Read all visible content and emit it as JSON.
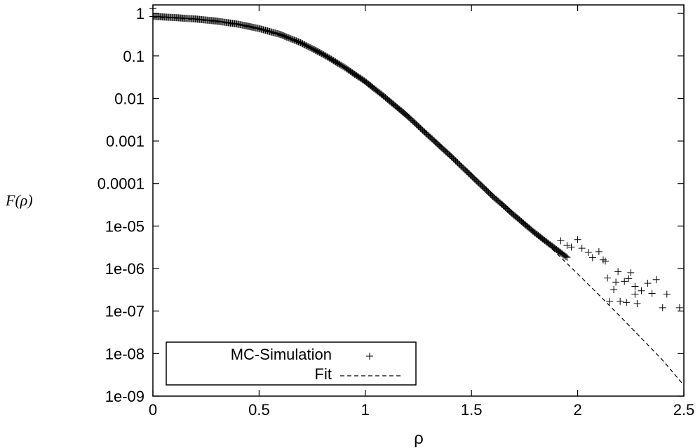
{
  "chart_data": {
    "type": "scatter",
    "title": "",
    "xlabel": "ρ",
    "ylabel": "F(ρ)",
    "xlim": [
      0,
      2.5
    ],
    "ylim": [
      1e-09,
      2
    ],
    "yscale": "log",
    "grid": false,
    "legend_position": "bottom-left",
    "x_ticks": [
      "0",
      "0.5",
      "1",
      "1.5",
      "2",
      "2.5"
    ],
    "y_ticks": [
      "1",
      "0.1",
      "0.01",
      "0.001",
      "0.0001",
      "1e-05",
      "1e-06",
      "1e-07",
      "1e-08",
      "1e-09"
    ],
    "series": [
      {
        "name": "MC-Simulation",
        "style": "points-plus",
        "curve": {
          "rho": [
            0,
            0.1,
            0.2,
            0.3,
            0.4,
            0.5,
            0.6,
            0.7,
            0.8,
            0.9,
            1.0,
            1.1,
            1.2,
            1.3,
            1.4,
            1.5,
            1.6,
            1.7,
            1.8,
            1.9,
            2.0
          ],
          "F": [
            0.85,
            0.8,
            0.74,
            0.66,
            0.56,
            0.44,
            0.32,
            0.2,
            0.11,
            0.055,
            0.025,
            0.01,
            0.0038,
            0.0013,
            0.00045,
            0.00015,
            5e-05,
            1.8e-05,
            6.8e-06,
            2.8e-06,
            1.2e-06
          ]
        },
        "tail_points": [
          [
            1.92,
            4.5e-06
          ],
          [
            1.95,
            3.5e-06
          ],
          [
            1.97,
            3.2e-06
          ],
          [
            2.0,
            4.8e-06
          ],
          [
            2.02,
            3e-06
          ],
          [
            2.05,
            2.4e-06
          ],
          [
            2.07,
            1.8e-06
          ],
          [
            2.1,
            2.5e-06
          ],
          [
            2.12,
            1.6e-06
          ],
          [
            2.13,
            1.5e-06
          ],
          [
            2.17,
            3.2e-07
          ],
          [
            2.18,
            4.8e-07
          ],
          [
            2.2,
            1.7e-07
          ],
          [
            2.22,
            5e-07
          ],
          [
            2.25,
            8e-07
          ],
          [
            2.27,
            2.5e-07
          ],
          [
            2.28,
            1.5e-07
          ],
          [
            2.3,
            3e-07
          ],
          [
            2.33,
            4.5e-07
          ],
          [
            2.35,
            2.6e-07
          ],
          [
            2.37,
            5.5e-07
          ],
          [
            2.4,
            1.2e-07
          ],
          [
            2.42,
            2.5e-07
          ],
          [
            2.48,
            1.2e-07
          ],
          [
            2.15,
            1.7e-07
          ],
          [
            2.23,
            1.6e-07
          ],
          [
            2.27,
            3.8e-07
          ],
          [
            2.14,
            6e-07
          ],
          [
            2.19,
            8.5e-07
          ],
          [
            2.24,
            5.8e-07
          ]
        ]
      },
      {
        "name": "Fit",
        "style": "dashed-line",
        "points": {
          "rho": [
            0,
            0.1,
            0.2,
            0.3,
            0.4,
            0.5,
            0.6,
            0.7,
            0.8,
            0.9,
            1.0,
            1.1,
            1.2,
            1.3,
            1.4,
            1.5,
            1.6,
            1.7,
            1.8,
            1.9,
            2.0,
            2.1,
            2.2,
            2.3,
            2.4,
            2.5
          ],
          "F": [
            0.82,
            0.78,
            0.72,
            0.64,
            0.54,
            0.42,
            0.3,
            0.19,
            0.105,
            0.052,
            0.024,
            0.0098,
            0.0038,
            0.0014,
            0.0005,
            0.00017,
            5.7e-05,
            2e-05,
            6.8e-06,
            2.3e-06,
            7.5e-07,
            2.4e-07,
            7.5e-08,
            2.3e-08,
            7e-09,
            1.8e-09
          ]
        }
      }
    ]
  }
}
